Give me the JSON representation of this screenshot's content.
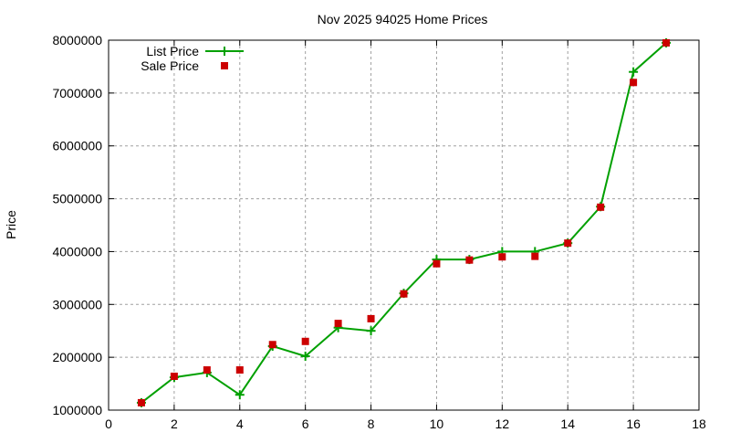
{
  "chart_data": {
    "type": "line",
    "title": "Nov 2025 94025 Home Prices",
    "xlabel": "",
    "ylabel": "Price",
    "xlim": [
      0,
      18
    ],
    "ylim": [
      1000000,
      8000000
    ],
    "x_ticks": [
      0,
      2,
      4,
      6,
      8,
      10,
      12,
      14,
      16,
      18
    ],
    "y_ticks": [
      1000000,
      2000000,
      3000000,
      4000000,
      5000000,
      6000000,
      7000000,
      8000000
    ],
    "grid": true,
    "legend_position": "top-left",
    "x": [
      1,
      2,
      3,
      4,
      5,
      6,
      7,
      8,
      9,
      10,
      11,
      12,
      13,
      14,
      15,
      16,
      17
    ],
    "series": [
      {
        "name": "List Price",
        "style": "linespoints",
        "marker": "plus",
        "color": "#00a000",
        "values": [
          1140000,
          1620000,
          1710000,
          1290000,
          2210000,
          2020000,
          2560000,
          2500000,
          3210000,
          3850000,
          3850000,
          4000000,
          4000000,
          4160000,
          4850000,
          7400000,
          7950000
        ]
      },
      {
        "name": "Sale Price",
        "style": "points",
        "marker": "square",
        "color": "#cc0000",
        "values": [
          1140000,
          1640000,
          1760000,
          1760000,
          2240000,
          2300000,
          2640000,
          2730000,
          3200000,
          3770000,
          3840000,
          3900000,
          3910000,
          4160000,
          4840000,
          7200000,
          7950000
        ]
      }
    ]
  }
}
